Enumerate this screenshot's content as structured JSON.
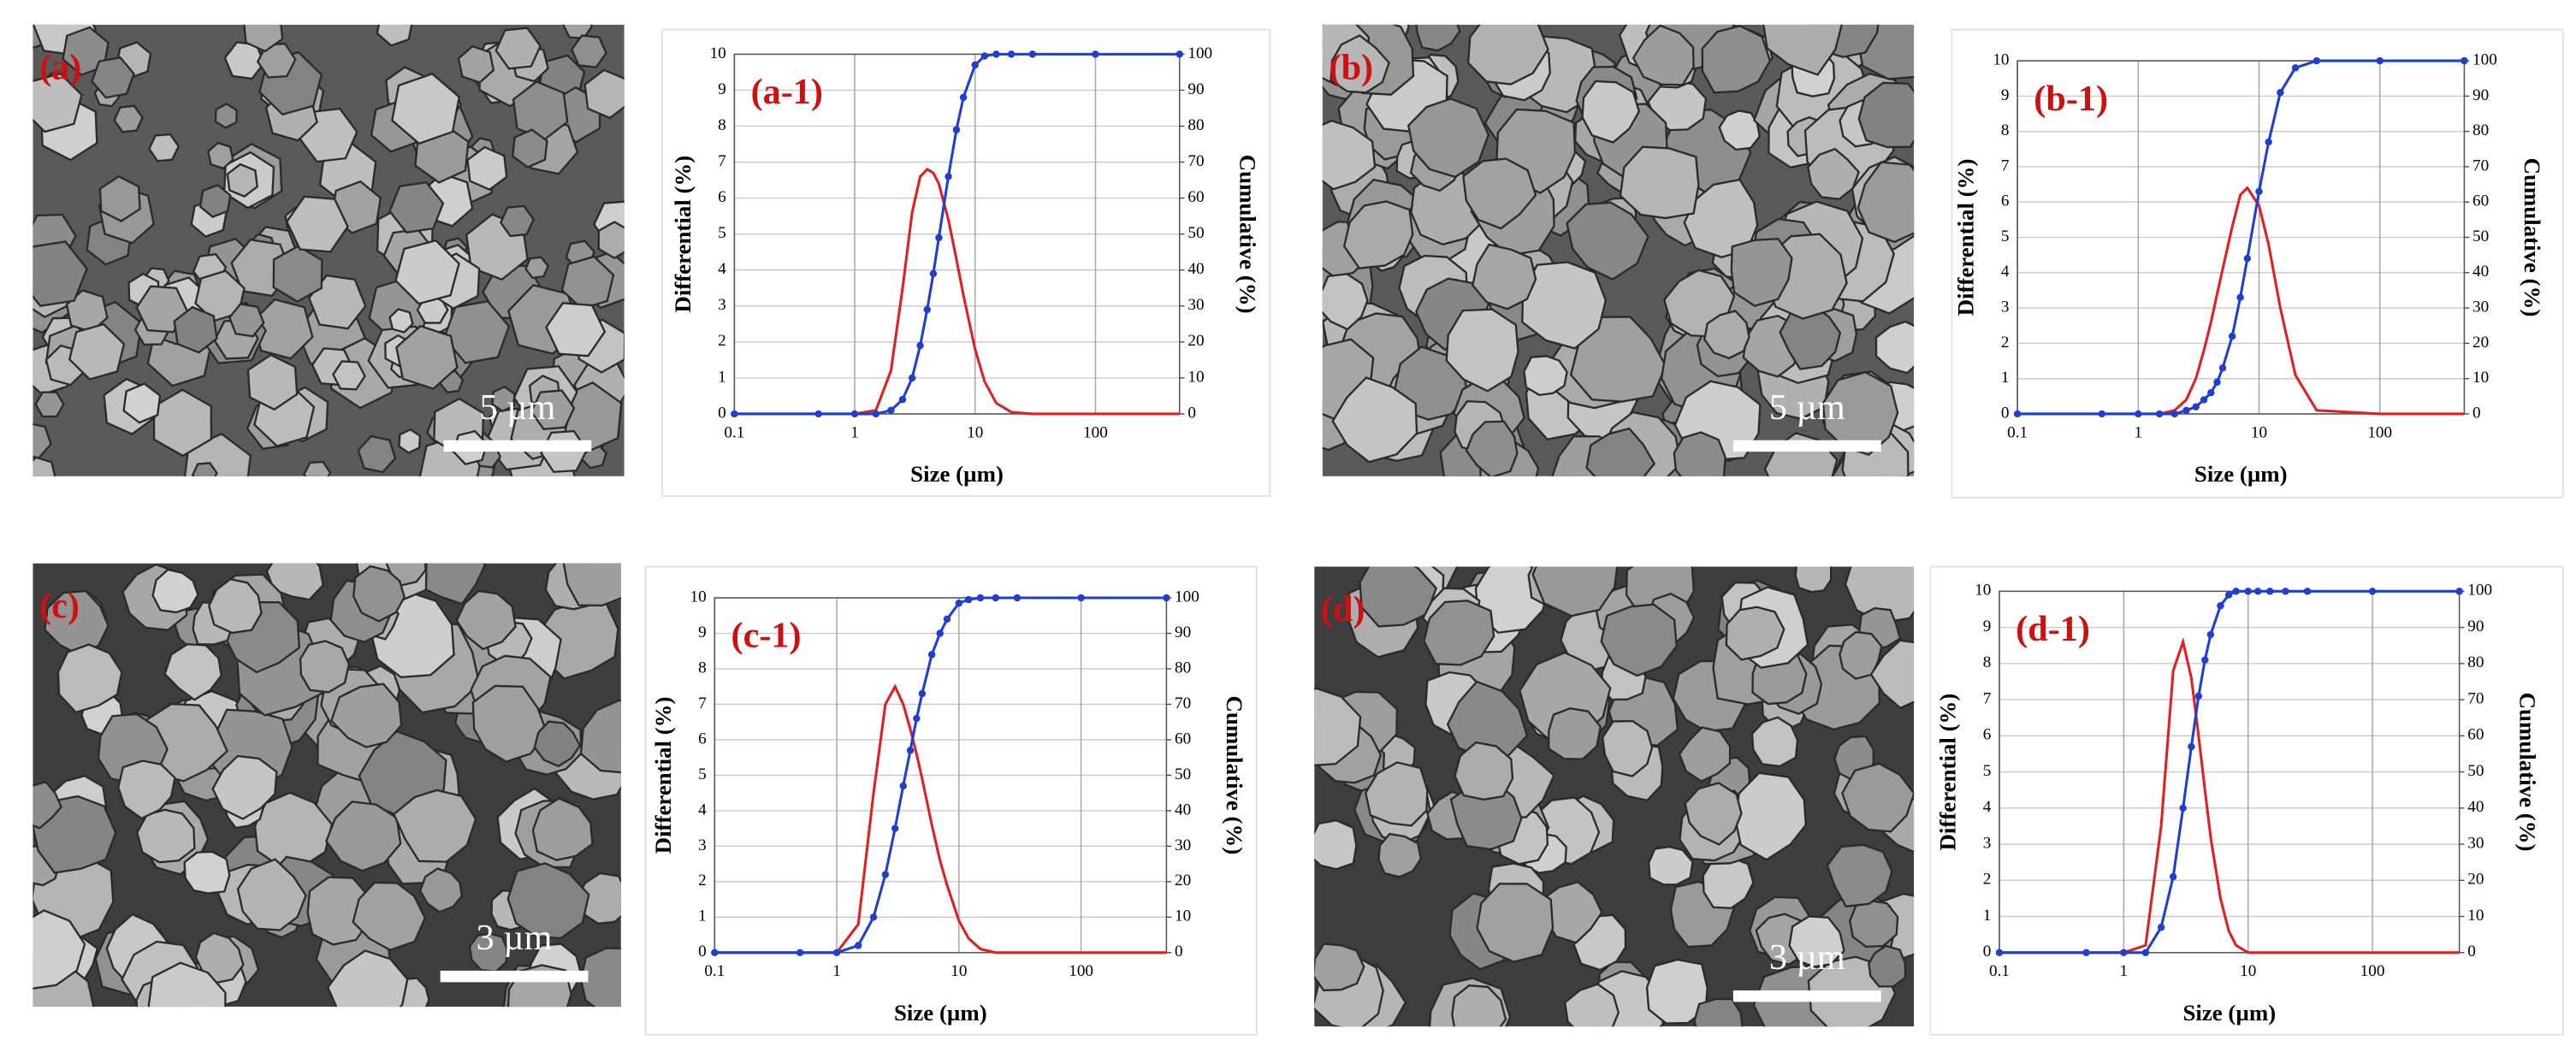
{
  "micrographs": [
    {
      "label": "(a)",
      "scale_bar": "5 µm"
    },
    {
      "label": "(b)",
      "scale_bar": "5 µm"
    },
    {
      "label": "(c)",
      "scale_bar": "3 µm"
    },
    {
      "label": "(d)",
      "scale_bar": "3 µm"
    }
  ],
  "chart_data": [
    {
      "type": "line",
      "annotation": "(a-1)",
      "log_x": true,
      "grid": true,
      "xlabel": "Size (µm)",
      "ylabel": "Differential (%)",
      "y2label": "Cumulative (%)",
      "xlim": [
        0.1,
        500
      ],
      "xticks": [
        0.1,
        1,
        10,
        100
      ],
      "ylim": [
        0,
        10
      ],
      "yticks": [
        0,
        1,
        2,
        3,
        4,
        5,
        6,
        7,
        8,
        9,
        10
      ],
      "y2lim": [
        0,
        100
      ],
      "y2ticks": [
        0,
        10,
        20,
        30,
        40,
        50,
        60,
        70,
        80,
        90,
        100
      ],
      "x": [
        0.1,
        0.5,
        1,
        1.5,
        2,
        2.5,
        3,
        3.5,
        4,
        4.5,
        5,
        6,
        7,
        8,
        10,
        12,
        15,
        20,
        30,
        100,
        500
      ],
      "series": [
        {
          "color": "#e02020",
          "values": [
            0,
            0,
            0,
            0.1,
            1.2,
            3.5,
            5.6,
            6.6,
            6.8,
            6.7,
            6.4,
            5.4,
            4.3,
            3.3,
            1.8,
            0.9,
            0.3,
            0.05,
            0,
            0,
            0
          ]
        },
        {
          "color": "#1f3fd0",
          "axis": "y2",
          "markers": true,
          "values": [
            0,
            0,
            0,
            0,
            1,
            4,
            10,
            19,
            29,
            39,
            49,
            66,
            79,
            88,
            97,
            99.5,
            100,
            100,
            100,
            100,
            100
          ]
        }
      ]
    },
    {
      "type": "line",
      "annotation": "(b-1)",
      "log_x": true,
      "grid": true,
      "xlabel": "Size (µm)",
      "ylabel": "Differential (%)",
      "y2label": "Cumulative (%)",
      "xlim": [
        0.1,
        500
      ],
      "xticks": [
        0.1,
        1,
        10,
        100
      ],
      "ylim": [
        0,
        10
      ],
      "yticks": [
        0,
        1,
        2,
        3,
        4,
        5,
        6,
        7,
        8,
        9,
        10
      ],
      "y2lim": [
        0,
        100
      ],
      "y2ticks": [
        0,
        10,
        20,
        30,
        40,
        50,
        60,
        70,
        80,
        90,
        100
      ],
      "x": [
        0.1,
        0.5,
        1,
        1.5,
        2,
        2.5,
        3,
        3.5,
        4,
        4.5,
        5,
        6,
        7,
        8,
        10,
        12,
        15,
        20,
        30,
        100,
        500
      ],
      "series": [
        {
          "color": "#e02020",
          "values": [
            0,
            0,
            0,
            0,
            0.1,
            0.4,
            1.0,
            1.8,
            2.6,
            3.4,
            4.1,
            5.3,
            6.2,
            6.4,
            5.9,
            4.8,
            3.0,
            1.1,
            0.1,
            0,
            0
          ]
        },
        {
          "color": "#1f3fd0",
          "axis": "y2",
          "markers": true,
          "values": [
            0,
            0,
            0,
            0,
            0,
            1,
            2,
            4,
            6,
            9,
            13,
            22,
            33,
            44,
            63,
            77,
            91,
            98,
            100,
            100,
            100
          ]
        }
      ]
    },
    {
      "type": "line",
      "annotation": "(c-1)",
      "log_x": true,
      "grid": true,
      "xlabel": "Size (µm)",
      "ylabel": "Differential (%)",
      "y2label": "Cumulative (%)",
      "xlim": [
        0.1,
        500
      ],
      "xticks": [
        0.1,
        1,
        10,
        100
      ],
      "ylim": [
        0,
        10
      ],
      "yticks": [
        0,
        1,
        2,
        3,
        4,
        5,
        6,
        7,
        8,
        9,
        10
      ],
      "y2lim": [
        0,
        100
      ],
      "y2ticks": [
        0,
        10,
        20,
        30,
        40,
        50,
        60,
        70,
        80,
        90,
        100
      ],
      "x": [
        0.1,
        0.5,
        1,
        1.5,
        2,
        2.5,
        3,
        3.5,
        4,
        4.5,
        5,
        6,
        7,
        8,
        10,
        12,
        15,
        20,
        30,
        100,
        500
      ],
      "series": [
        {
          "color": "#e02020",
          "values": [
            0,
            0,
            0,
            0.8,
            4.5,
            7.0,
            7.5,
            7.0,
            6.3,
            5.6,
            4.9,
            3.6,
            2.6,
            1.9,
            0.9,
            0.4,
            0.1,
            0,
            0,
            0,
            0
          ]
        },
        {
          "color": "#1f3fd0",
          "axis": "y2",
          "markers": true,
          "values": [
            0,
            0,
            0,
            2,
            10,
            22,
            35,
            47,
            57,
            66,
            73,
            84,
            90,
            94,
            98.5,
            99.5,
            100,
            100,
            100,
            100,
            100
          ]
        }
      ]
    },
    {
      "type": "line",
      "annotation": "(d-1)",
      "log_x": true,
      "grid": true,
      "xlabel": "Size (µm)",
      "ylabel": "Differential (%)",
      "y2label": "Cumulative (%)",
      "xlim": [
        0.1,
        500
      ],
      "xticks": [
        0.1,
        1,
        10,
        100
      ],
      "ylim": [
        0,
        10
      ],
      "yticks": [
        0,
        1,
        2,
        3,
        4,
        5,
        6,
        7,
        8,
        9,
        10
      ],
      "y2lim": [
        0,
        100
      ],
      "y2ticks": [
        0,
        10,
        20,
        30,
        40,
        50,
        60,
        70,
        80,
        90,
        100
      ],
      "x": [
        0.1,
        0.5,
        1,
        1.5,
        2,
        2.5,
        3,
        3.5,
        4,
        4.5,
        5,
        6,
        7,
        8,
        10,
        12,
        15,
        20,
        30,
        100,
        500
      ],
      "series": [
        {
          "color": "#e02020",
          "values": [
            0,
            0,
            0,
            0.2,
            3.5,
            7.8,
            8.6,
            7.6,
            6.0,
            4.5,
            3.2,
            1.5,
            0.6,
            0.2,
            0,
            0,
            0,
            0,
            0,
            0,
            0
          ]
        },
        {
          "color": "#1f3fd0",
          "axis": "y2",
          "markers": true,
          "values": [
            0,
            0,
            0,
            0,
            7,
            21,
            40,
            57,
            71,
            81,
            88,
            96,
            99,
            100,
            100,
            100,
            100,
            100,
            100,
            100,
            100
          ]
        }
      ]
    }
  ]
}
